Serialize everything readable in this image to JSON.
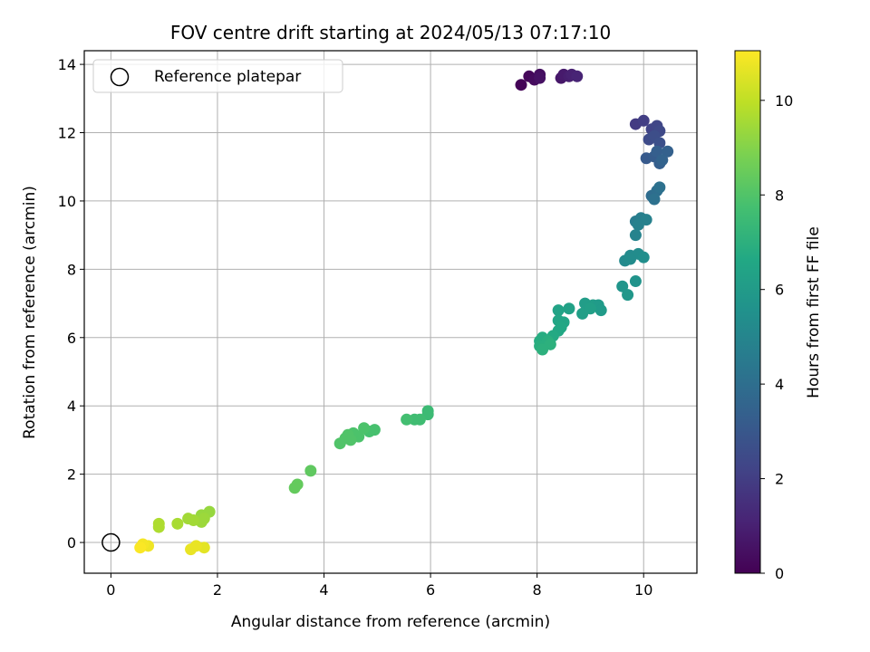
{
  "chart_data": {
    "type": "scatter",
    "title": "FOV centre drift starting at 2024/05/13 07:17:10",
    "xlabel": "Angular distance from reference (arcmin)",
    "ylabel": "Rotation from reference (arcmin)",
    "xlim": [
      -0.5,
      11.0
    ],
    "ylim": [
      -0.9,
      14.4
    ],
    "xticks": [
      0,
      2,
      4,
      6,
      8,
      10
    ],
    "yticks": [
      0,
      2,
      4,
      6,
      8,
      10,
      12,
      14
    ],
    "grid": true,
    "legend": {
      "placement": "top-left",
      "entries": [
        "Reference platepar"
      ]
    },
    "reference_point": {
      "x": 0,
      "y": 0,
      "label": "Reference platepar"
    },
    "colorbar": {
      "label": "Hours from first FF file",
      "colormap": "viridis",
      "range": [
        0,
        11.05
      ],
      "ticks": [
        0,
        2,
        4,
        6,
        8,
        10
      ]
    },
    "points": [
      {
        "x": 7.7,
        "y": 13.4,
        "c": 0.1
      },
      {
        "x": 7.85,
        "y": 13.65,
        "c": 0.2
      },
      {
        "x": 7.95,
        "y": 13.55,
        "c": 0.3
      },
      {
        "x": 8.05,
        "y": 13.7,
        "c": 0.4
      },
      {
        "x": 8.05,
        "y": 13.6,
        "c": 0.5
      },
      {
        "x": 8.45,
        "y": 13.6,
        "c": 0.7
      },
      {
        "x": 8.5,
        "y": 13.7,
        "c": 0.8
      },
      {
        "x": 8.6,
        "y": 13.65,
        "c": 0.9
      },
      {
        "x": 8.65,
        "y": 13.7,
        "c": 1.0
      },
      {
        "x": 8.75,
        "y": 13.65,
        "c": 1.1
      },
      {
        "x": 9.85,
        "y": 12.25,
        "c": 1.9
      },
      {
        "x": 10.0,
        "y": 12.35,
        "c": 2.0
      },
      {
        "x": 10.15,
        "y": 12.1,
        "c": 2.2
      },
      {
        "x": 10.25,
        "y": 12.2,
        "c": 2.3
      },
      {
        "x": 10.3,
        "y": 12.05,
        "c": 2.4
      },
      {
        "x": 10.1,
        "y": 11.8,
        "c": 2.5
      },
      {
        "x": 10.2,
        "y": 11.9,
        "c": 2.6
      },
      {
        "x": 10.3,
        "y": 11.7,
        "c": 2.7
      },
      {
        "x": 10.05,
        "y": 11.25,
        "c": 3.1
      },
      {
        "x": 10.2,
        "y": 11.3,
        "c": 3.2
      },
      {
        "x": 10.3,
        "y": 11.1,
        "c": 3.3
      },
      {
        "x": 10.25,
        "y": 11.45,
        "c": 3.3
      },
      {
        "x": 10.45,
        "y": 11.45,
        "c": 3.4
      },
      {
        "x": 10.35,
        "y": 11.2,
        "c": 3.5
      },
      {
        "x": 10.15,
        "y": 10.15,
        "c": 3.9
      },
      {
        "x": 10.25,
        "y": 10.3,
        "c": 4.0
      },
      {
        "x": 10.3,
        "y": 10.4,
        "c": 4.1
      },
      {
        "x": 10.2,
        "y": 10.05,
        "c": 4.1
      },
      {
        "x": 9.85,
        "y": 9.4,
        "c": 4.6
      },
      {
        "x": 9.95,
        "y": 9.5,
        "c": 4.7
      },
      {
        "x": 10.05,
        "y": 9.45,
        "c": 4.8
      },
      {
        "x": 9.9,
        "y": 9.3,
        "c": 4.8
      },
      {
        "x": 9.85,
        "y": 9.0,
        "c": 4.9
      },
      {
        "x": 9.65,
        "y": 8.25,
        "c": 5.2
      },
      {
        "x": 9.75,
        "y": 8.4,
        "c": 5.2
      },
      {
        "x": 9.9,
        "y": 8.45,
        "c": 5.3
      },
      {
        "x": 10.0,
        "y": 8.35,
        "c": 5.4
      },
      {
        "x": 9.75,
        "y": 8.3,
        "c": 5.3
      },
      {
        "x": 9.6,
        "y": 7.5,
        "c": 5.7
      },
      {
        "x": 9.85,
        "y": 7.65,
        "c": 5.6
      },
      {
        "x": 9.7,
        "y": 7.25,
        "c": 5.8
      },
      {
        "x": 8.9,
        "y": 7.0,
        "c": 6.1
      },
      {
        "x": 9.05,
        "y": 6.95,
        "c": 6.1
      },
      {
        "x": 9.15,
        "y": 6.95,
        "c": 6.0
      },
      {
        "x": 9.2,
        "y": 6.8,
        "c": 6.0
      },
      {
        "x": 8.85,
        "y": 6.7,
        "c": 6.2
      },
      {
        "x": 9.0,
        "y": 6.85,
        "c": 6.2
      },
      {
        "x": 8.6,
        "y": 6.85,
        "c": 6.3
      },
      {
        "x": 8.4,
        "y": 6.8,
        "c": 6.4
      },
      {
        "x": 8.4,
        "y": 6.5,
        "c": 6.5
      },
      {
        "x": 8.5,
        "y": 6.45,
        "c": 6.5
      },
      {
        "x": 8.45,
        "y": 6.3,
        "c": 6.6
      },
      {
        "x": 8.4,
        "y": 6.2,
        "c": 6.6
      },
      {
        "x": 8.3,
        "y": 6.05,
        "c": 6.7
      },
      {
        "x": 8.1,
        "y": 6.0,
        "c": 6.8
      },
      {
        "x": 8.05,
        "y": 5.9,
        "c": 6.8
      },
      {
        "x": 8.05,
        "y": 5.75,
        "c": 6.9
      },
      {
        "x": 8.2,
        "y": 5.9,
        "c": 6.9
      },
      {
        "x": 8.25,
        "y": 5.8,
        "c": 7.0
      },
      {
        "x": 8.1,
        "y": 5.65,
        "c": 7.0
      },
      {
        "x": 5.95,
        "y": 3.85,
        "c": 7.5
      },
      {
        "x": 5.95,
        "y": 3.75,
        "c": 7.5
      },
      {
        "x": 5.8,
        "y": 3.6,
        "c": 7.6
      },
      {
        "x": 5.7,
        "y": 3.6,
        "c": 7.6
      },
      {
        "x": 5.55,
        "y": 3.6,
        "c": 7.7
      },
      {
        "x": 4.95,
        "y": 3.3,
        "c": 7.8
      },
      {
        "x": 4.85,
        "y": 3.25,
        "c": 7.8
      },
      {
        "x": 4.75,
        "y": 3.35,
        "c": 7.9
      },
      {
        "x": 4.65,
        "y": 3.1,
        "c": 7.9
      },
      {
        "x": 4.55,
        "y": 3.2,
        "c": 7.9
      },
      {
        "x": 4.45,
        "y": 3.15,
        "c": 8.0
      },
      {
        "x": 4.4,
        "y": 3.05,
        "c": 8.0
      },
      {
        "x": 4.3,
        "y": 2.9,
        "c": 8.0
      },
      {
        "x": 4.5,
        "y": 3.0,
        "c": 8.0
      },
      {
        "x": 3.75,
        "y": 2.1,
        "c": 8.3
      },
      {
        "x": 3.5,
        "y": 1.7,
        "c": 8.4
      },
      {
        "x": 3.45,
        "y": 1.6,
        "c": 8.4
      },
      {
        "x": 1.85,
        "y": 0.9,
        "c": 9.3
      },
      {
        "x": 1.7,
        "y": 0.8,
        "c": 9.3
      },
      {
        "x": 1.75,
        "y": 0.7,
        "c": 9.4
      },
      {
        "x": 1.7,
        "y": 0.6,
        "c": 9.4
      },
      {
        "x": 1.55,
        "y": 0.65,
        "c": 9.5
      },
      {
        "x": 1.45,
        "y": 0.7,
        "c": 9.5
      },
      {
        "x": 1.25,
        "y": 0.55,
        "c": 9.6
      },
      {
        "x": 0.9,
        "y": 0.55,
        "c": 9.7
      },
      {
        "x": 0.9,
        "y": 0.45,
        "c": 9.7
      },
      {
        "x": 1.75,
        "y": -0.15,
        "c": 10.6
      },
      {
        "x": 1.6,
        "y": -0.1,
        "c": 10.7
      },
      {
        "x": 1.5,
        "y": -0.2,
        "c": 10.7
      },
      {
        "x": 0.7,
        "y": -0.1,
        "c": 10.8
      },
      {
        "x": 0.6,
        "y": -0.05,
        "c": 10.9
      },
      {
        "x": 0.55,
        "y": -0.15,
        "c": 11.0
      }
    ]
  }
}
